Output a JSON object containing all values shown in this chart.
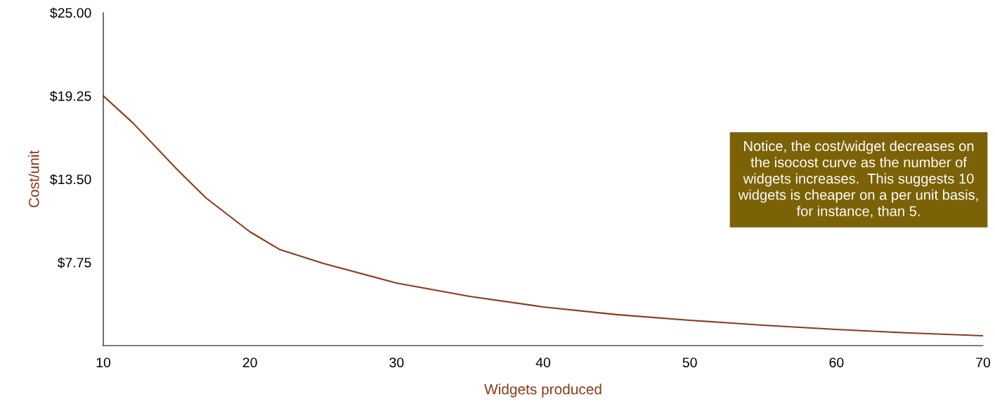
{
  "chart_data": {
    "type": "line",
    "xlabel": "Widgets produced",
    "ylabel": "Cost/unit",
    "x": [
      10,
      12,
      15,
      17,
      20,
      22,
      25,
      30,
      35,
      40,
      45,
      50,
      55,
      60,
      65,
      70
    ],
    "series": [
      {
        "color": "#8b3a1a",
        "values": [
          19.25,
          17.4,
          14.2,
          12.2,
          9.86,
          8.65,
          7.68,
          6.32,
          5.4,
          4.67,
          4.14,
          3.75,
          3.41,
          3.12,
          2.87,
          2.68
        ]
      }
    ],
    "xlim": [
      10,
      70
    ],
    "xticks": [
      10,
      20,
      30,
      40,
      50,
      60,
      70
    ],
    "ylim": [
      2,
      25
    ],
    "yticks": [
      {
        "value": 7.75,
        "label": "$7.75"
      },
      {
        "value": 13.5,
        "label": "$13.50"
      },
      {
        "value": 19.25,
        "label": "$19.25"
      },
      {
        "value": 25,
        "label": "$25.00"
      }
    ],
    "annotations": [
      "Notice, the cost/widget decreases on the isocost curve as the number of widgets increases.  This suggests 10 widgets is cheaper on a per unit basis, for instance, than 5."
    ],
    "grid": false,
    "legend": false,
    "marker": "none",
    "line_style": "solid"
  }
}
